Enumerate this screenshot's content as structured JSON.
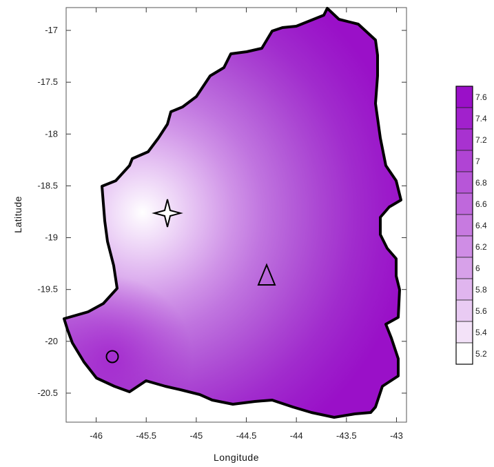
{
  "axes": {
    "xlabel": "Longitude",
    "ylabel": "Latitude",
    "x_ticks": [
      "-46",
      "-45.5",
      "-45",
      "-44.5",
      "-44",
      "-43.5",
      "-43"
    ],
    "y_ticks": [
      "-17",
      "-17.5",
      "-18",
      "-18.5",
      "-19",
      "-19.5",
      "-20",
      "-20.5"
    ],
    "xlim": [
      -46.3,
      -42.9
    ],
    "ylim": [
      -20.78,
      -16.78
    ]
  },
  "colorbar": {
    "labels": [
      "7.6",
      "7.4",
      "7.2",
      "7",
      "6.8",
      "6.6",
      "6.4",
      "6.2",
      "6",
      "5.8",
      "5.6",
      "5.4",
      "5.2"
    ],
    "color_low": "#ffffff",
    "color_high": "#9a10c8"
  },
  "markers": [
    {
      "name": "star-marker",
      "shape": "four-point-star",
      "lon": -45.27,
      "lat": -18.67
    },
    {
      "name": "triangle-marker",
      "shape": "triangle",
      "lon": -44.29,
      "lat": -19.3
    },
    {
      "name": "circle-marker",
      "shape": "circle",
      "lon": -45.82,
      "lat": -20.1
    }
  ],
  "colors": {
    "border": "#000000",
    "min_region": "#ffffff",
    "max_region": "#9a10c8"
  }
}
